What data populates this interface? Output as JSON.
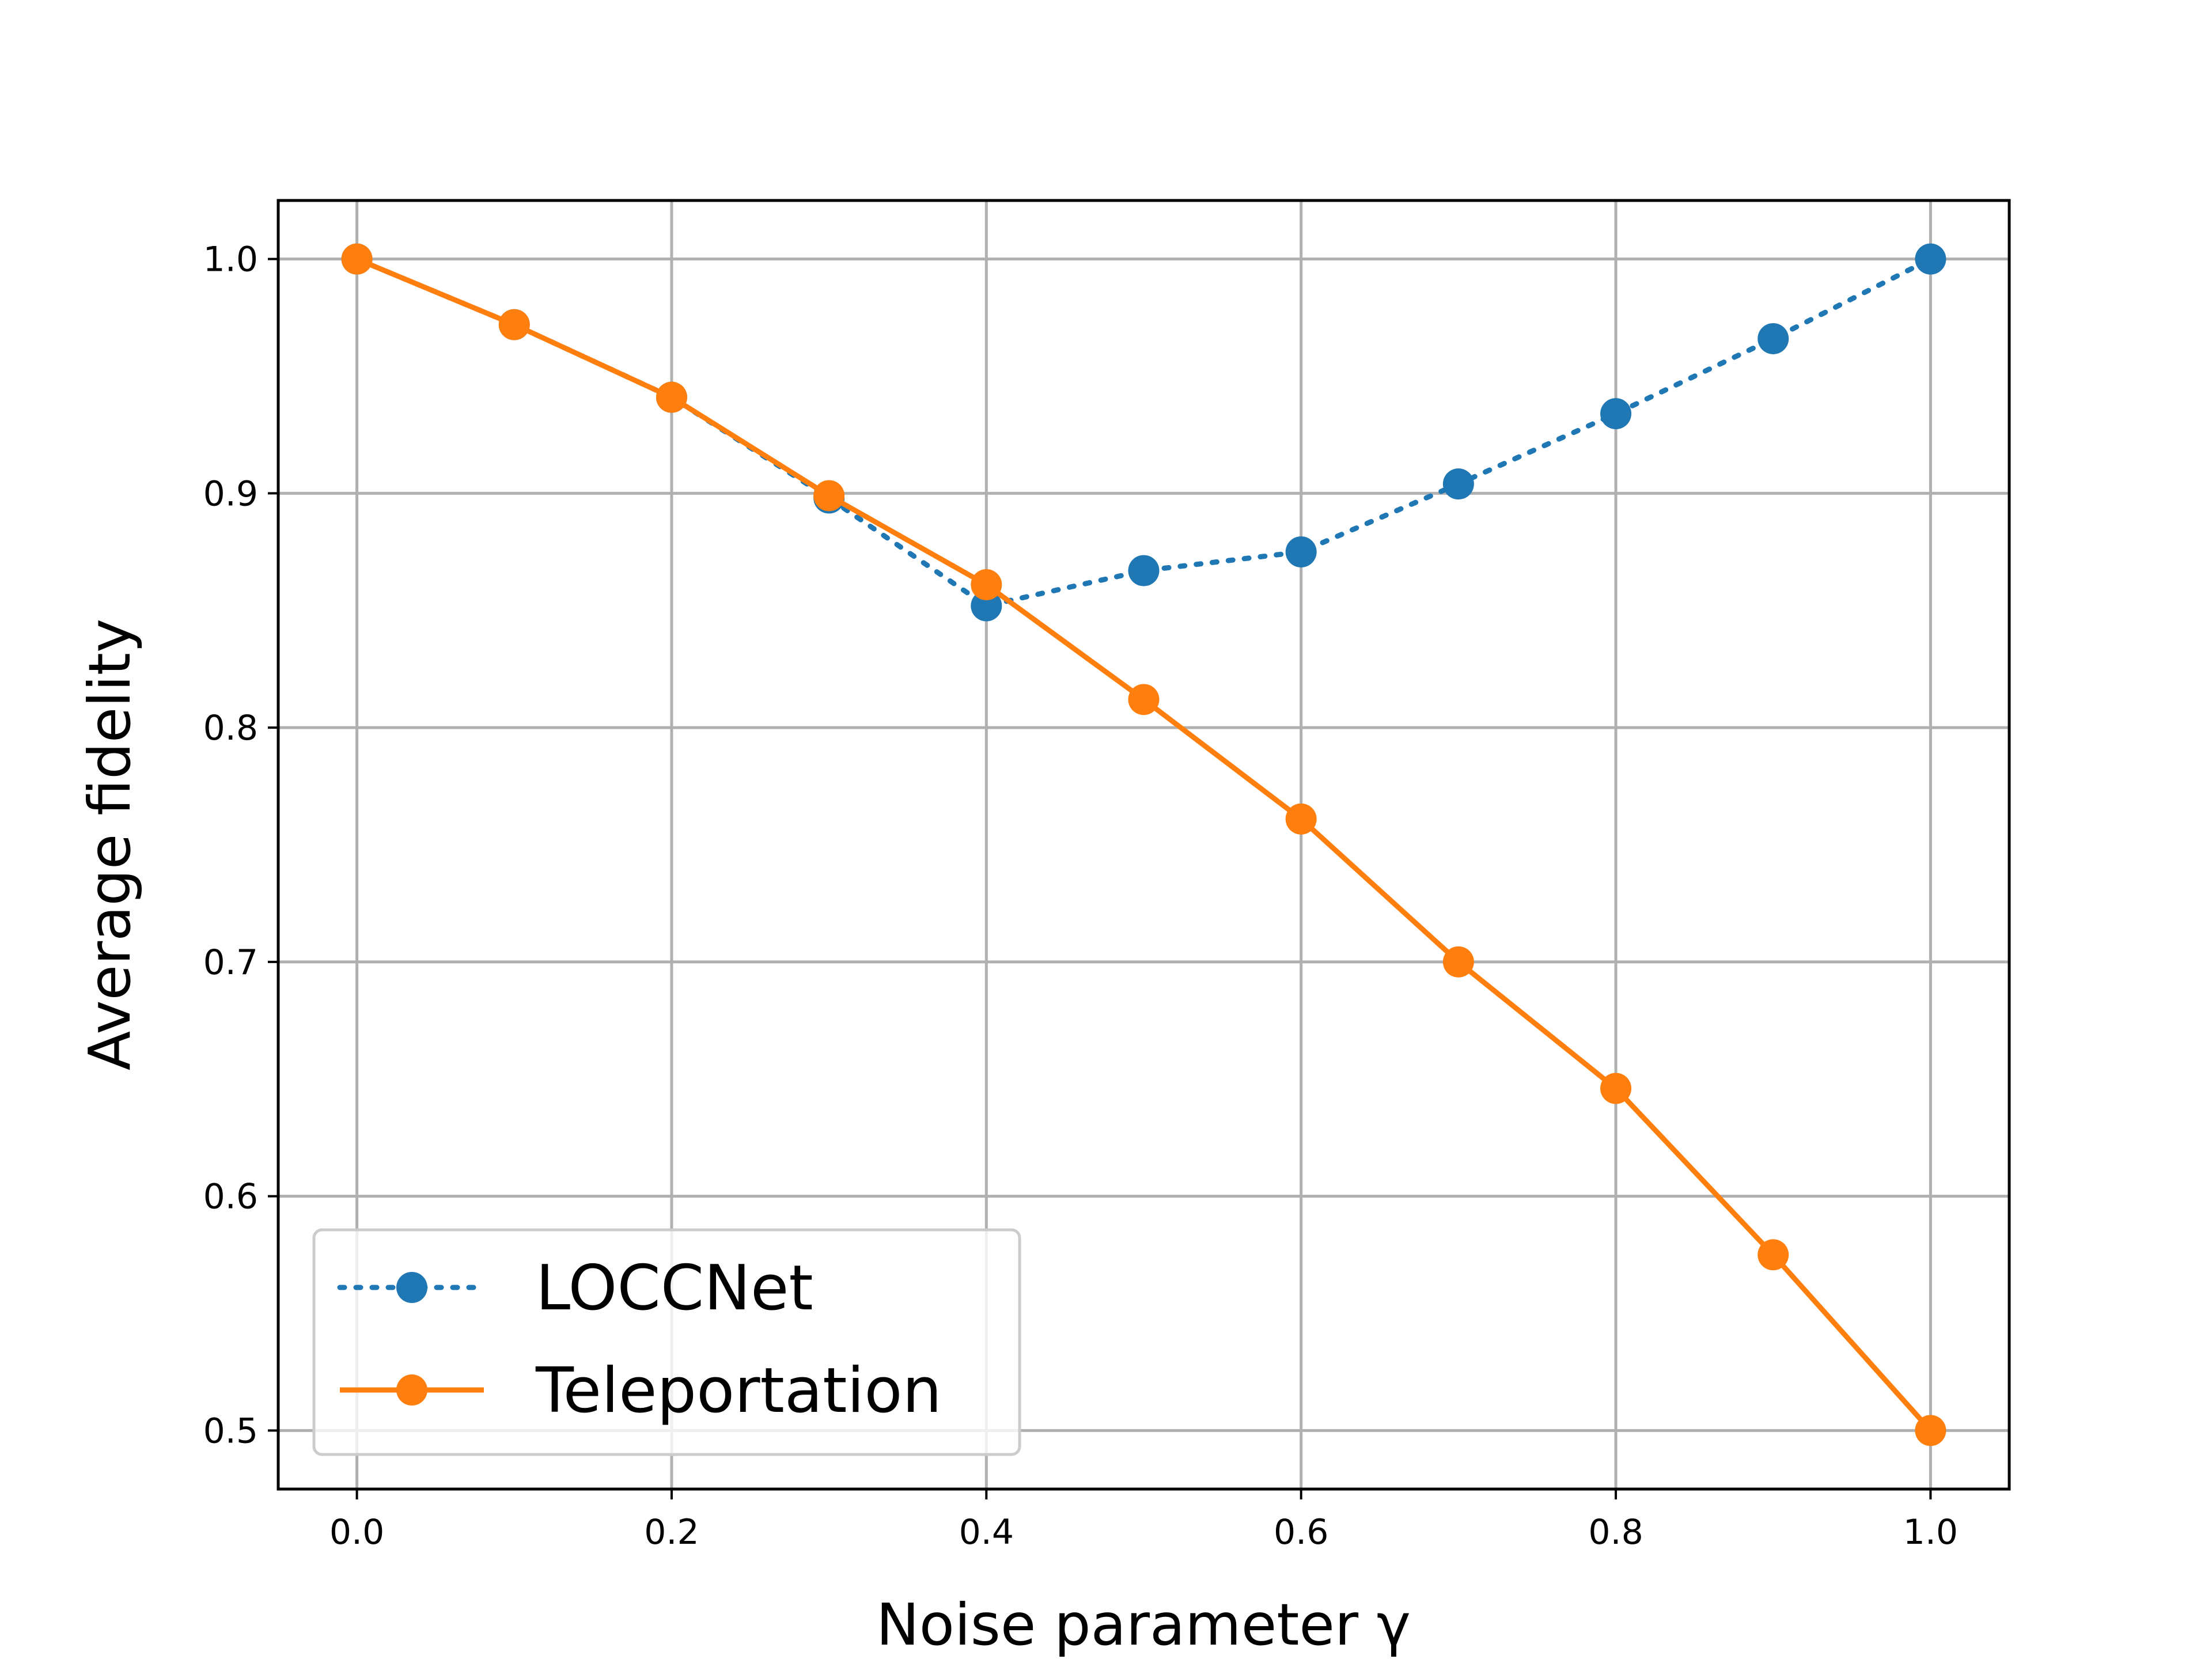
{
  "chart_data": {
    "type": "line",
    "title": "",
    "xlabel": "Noise parameter γ",
    "ylabel": "Average fidelity",
    "xlim": [
      -0.05,
      1.05
    ],
    "ylim": [
      0.475,
      1.025
    ],
    "xticks": [
      0.0,
      0.2,
      0.4,
      0.6,
      0.8,
      1.0
    ],
    "xtick_labels": [
      "0.0",
      "0.2",
      "0.4",
      "0.6",
      "0.8",
      "1.0"
    ],
    "yticks": [
      0.5,
      0.6,
      0.7,
      0.8,
      0.9,
      1.0
    ],
    "ytick_labels": [
      "0.5",
      "0.6",
      "0.7",
      "0.8",
      "0.9",
      "1.0"
    ],
    "grid": true,
    "legend_position": "lower-left",
    "x": [
      0.0,
      0.1,
      0.2,
      0.3,
      0.4,
      0.5,
      0.6,
      0.7,
      0.8,
      0.9,
      1.0
    ],
    "series": [
      {
        "name": "LOCCNet",
        "color": "#1f77b4",
        "line_style": "dotted",
        "marker": "circle",
        "values": [
          1.0,
          0.972,
          0.941,
          0.898,
          0.852,
          0.867,
          0.875,
          0.904,
          0.934,
          0.966,
          1.0
        ]
      },
      {
        "name": "Teleportation",
        "color": "#ff7f0e",
        "line_style": "solid",
        "marker": "circle",
        "values": [
          1.0,
          0.972,
          0.941,
          0.899,
          0.861,
          0.812,
          0.761,
          0.7,
          0.646,
          0.575,
          0.5
        ]
      }
    ]
  }
}
